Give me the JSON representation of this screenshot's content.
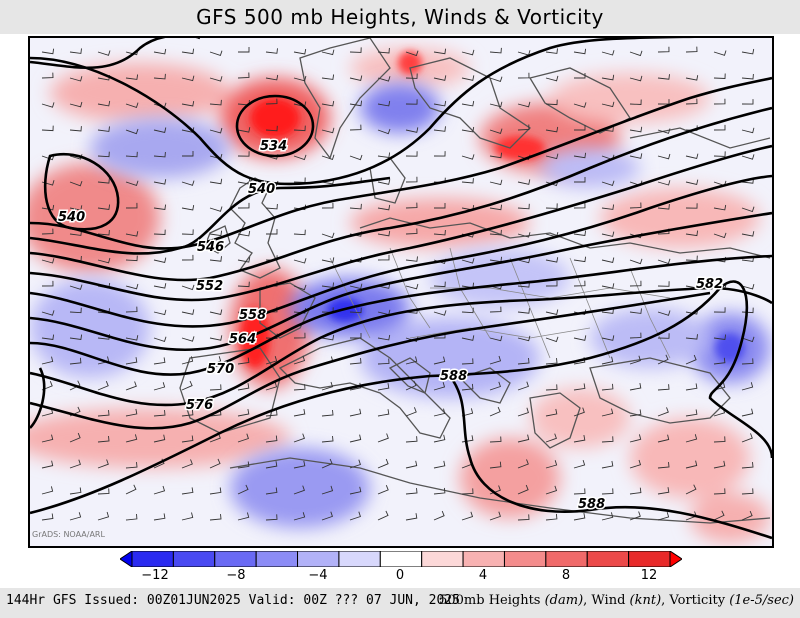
{
  "title": "GFS 500 mb Heights, Winds & Vorticity",
  "credit": "GrADS: NOAA/ARL",
  "contour_labels": [
    "534",
    "540",
    "540",
    "546",
    "552",
    "558",
    "564",
    "570",
    "576",
    "582",
    "588",
    "588"
  ],
  "colorbar": {
    "ticks": [
      "−12",
      "−8",
      "−4",
      "0",
      "4",
      "8",
      "12"
    ],
    "colors": [
      "#0000ee",
      "#2a2af0",
      "#4a4af2",
      "#6a6af4",
      "#8c8cf6",
      "#b2b2f8",
      "#d8d8fc",
      "#ffffff",
      "#fcd8d8",
      "#f8b2b2",
      "#f48c8c",
      "#f06a6a",
      "#ec4a4a",
      "#e82a2a",
      "#ff0000"
    ]
  },
  "footer": {
    "issued": "144Hr GFS Issued: 00Z01JUN2025 Valid: 00Z ??? 07 JUN, 2025",
    "legend_prefix": "500mb Heights ",
    "legend_units_heights": "(dam)",
    "legend_wind": ", Wind ",
    "legend_units_wind": "(knt)",
    "legend_vort": ", Vorticity ",
    "legend_units_vort": "(1e-5/sec)"
  }
}
